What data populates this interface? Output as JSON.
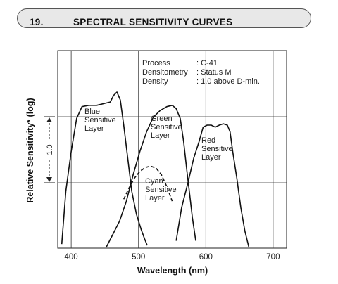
{
  "header": {
    "number": "19.",
    "title": "SPECTRAL SENSITIVITY CURVES"
  },
  "chart_data": {
    "type": "line",
    "xlabel": "Wavelength (nm)",
    "ylabel": "Relative Sensitivity* (log)",
    "xlim": [
      380,
      720
    ],
    "x_ticks": [
      400,
      500,
      600,
      700
    ],
    "log_scale_y": true,
    "grid": true,
    "scale_bar_label": "1.0",
    "conditions": [
      {
        "label": "Process",
        "value": ": C-41"
      },
      {
        "label": "Densitometry",
        "value": ": Status M"
      },
      {
        "label": "Density",
        "value": ": 1.0 above D-min."
      }
    ],
    "series": [
      {
        "name": "Blue Sensitive Layer",
        "label_lines": [
          "Blue",
          "Sensitive",
          "Layer"
        ],
        "dashed": false,
        "points": [
          [
            386,
            0.2
          ],
          [
            392,
            1.0
          ],
          [
            400,
            1.6
          ],
          [
            408,
            2.1
          ],
          [
            416,
            2.28
          ],
          [
            426,
            2.3
          ],
          [
            438,
            2.3
          ],
          [
            450,
            2.33
          ],
          [
            458,
            2.35
          ],
          [
            463,
            2.45
          ],
          [
            468,
            2.5
          ],
          [
            473,
            2.38
          ],
          [
            478,
            2.0
          ],
          [
            484,
            1.5
          ],
          [
            490,
            1.0
          ],
          [
            497,
            0.65
          ],
          [
            504,
            0.42
          ],
          [
            509,
            0.28
          ],
          [
            513,
            0.18
          ]
        ]
      },
      {
        "name": "Green Sensitive Layer",
        "label_lines": [
          "Green",
          "Sensitive",
          "Layer"
        ],
        "dashed": false,
        "points": [
          [
            452,
            0.15
          ],
          [
            462,
            0.35
          ],
          [
            472,
            0.55
          ],
          [
            482,
            0.85
          ],
          [
            492,
            1.25
          ],
          [
            502,
            1.6
          ],
          [
            512,
            1.9
          ],
          [
            522,
            2.12
          ],
          [
            532,
            2.22
          ],
          [
            542,
            2.28
          ],
          [
            550,
            2.3
          ],
          [
            556,
            2.25
          ],
          [
            562,
            2.1
          ],
          [
            567,
            1.75
          ],
          [
            572,
            1.3
          ],
          [
            576,
            0.95
          ],
          [
            580,
            0.6
          ],
          [
            585,
            0.25
          ]
        ]
      },
      {
        "name": "Red Sensitive Layer",
        "label_lines": [
          "Red",
          "Sensitive",
          "Layer"
        ],
        "dashed": false,
        "points": [
          [
            556,
            0.25
          ],
          [
            564,
            0.75
          ],
          [
            574,
            1.15
          ],
          [
            582,
            1.5
          ],
          [
            590,
            1.75
          ],
          [
            596,
            1.97
          ],
          [
            602,
            2.0
          ],
          [
            608,
            2.0
          ],
          [
            614,
            1.97
          ],
          [
            620,
            2.0
          ],
          [
            626,
            2.02
          ],
          [
            632,
            2.0
          ],
          [
            636,
            1.9
          ],
          [
            640,
            1.6
          ],
          [
            646,
            1.2
          ],
          [
            652,
            0.75
          ],
          [
            658,
            0.4
          ],
          [
            664,
            0.15
          ]
        ]
      },
      {
        "name": "Cyan Sensitive Layer",
        "label_lines": [
          "Cyan",
          "Sensitive",
          "Layer"
        ],
        "dashed": true,
        "points": [
          [
            478,
            0.88
          ],
          [
            486,
            1.05
          ],
          [
            494,
            1.2
          ],
          [
            502,
            1.3
          ],
          [
            510,
            1.36
          ],
          [
            518,
            1.38
          ],
          [
            526,
            1.35
          ],
          [
            534,
            1.25
          ],
          [
            542,
            1.07
          ],
          [
            550,
            0.85
          ]
        ]
      }
    ]
  }
}
